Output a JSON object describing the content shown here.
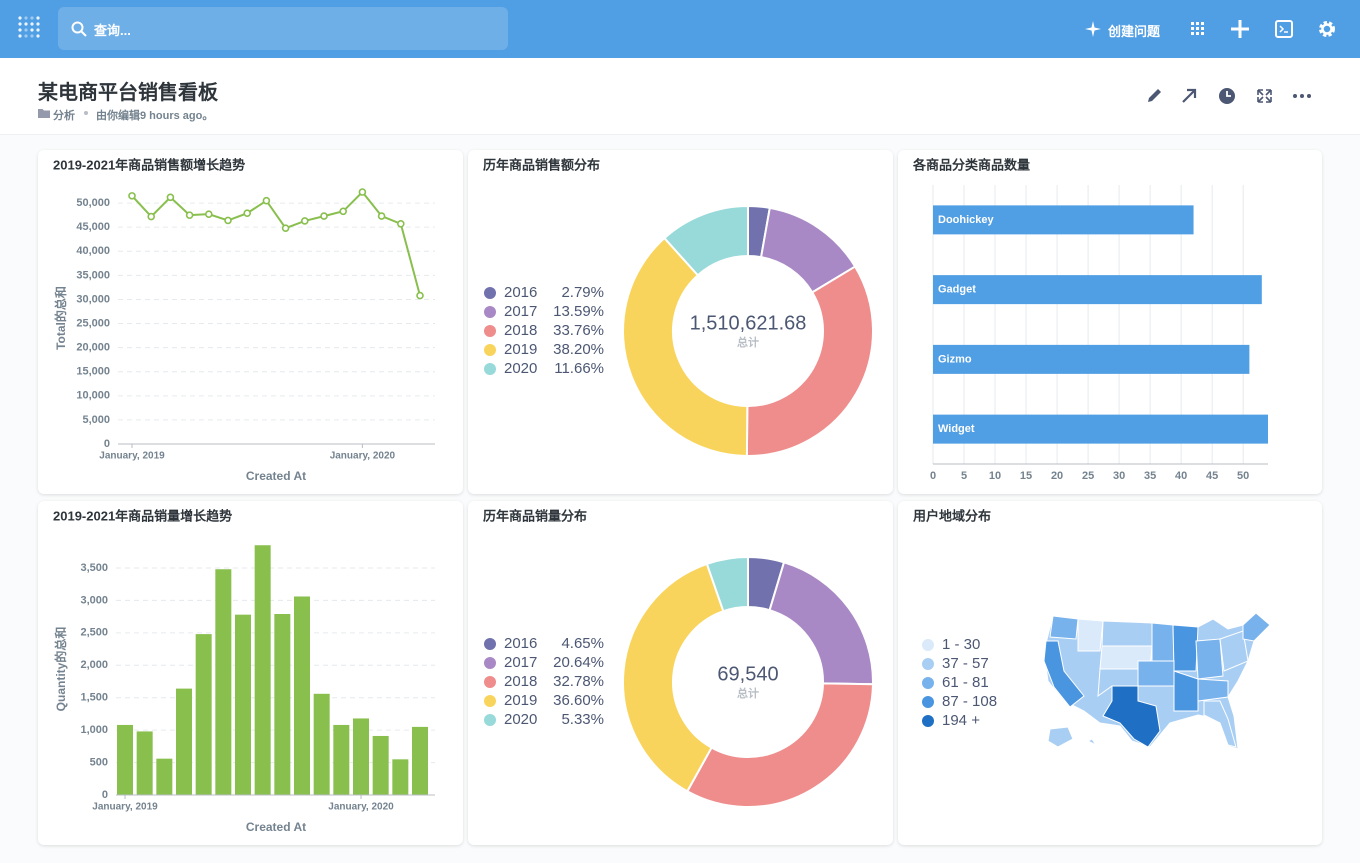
{
  "nav": {
    "search_placeholder": "查询...",
    "new_question": "创建问题"
  },
  "header": {
    "title": "某电商平台销售看板",
    "collection": "分析",
    "edited": "由你编辑9 hours ago。"
  },
  "cards": [
    {
      "type": "line",
      "title": "2019-2021年商品销售额增长趋势",
      "x_label": "Created At",
      "y_label": "Total的总和",
      "color": "#88bf4d",
      "categories": [
        "January, 2019",
        null,
        null,
        null,
        null,
        null,
        null,
        null,
        null,
        null,
        null,
        null,
        "January, 2020",
        null,
        null,
        null
      ],
      "values": [
        51500,
        47200,
        51200,
        47500,
        47700,
        46400,
        47900,
        50500,
        44800,
        46300,
        47300,
        48300,
        52300,
        47300,
        45700,
        30800
      ],
      "ylim": [
        0,
        55000
      ],
      "yticks": [
        0,
        {
          "value": 5000,
          "label": "5,000"
        },
        {
          "value": 10000,
          "label": "10,000"
        },
        {
          "value": 15000,
          "label": "15,000"
        },
        {
          "value": 20000,
          "label": "20,000"
        },
        {
          "value": 25000,
          "label": "25,000"
        },
        {
          "value": 30000,
          "label": "30,000"
        },
        {
          "value": 35000,
          "label": "35,000"
        },
        {
          "value": 40000,
          "label": "40,000"
        },
        {
          "value": 45000,
          "label": "45,000"
        },
        {
          "value": 50000,
          "label": "50,000"
        }
      ],
      "grid": true
    },
    {
      "type": "donut",
      "title": "历年商品销售额分布",
      "total": "1,510,621.68",
      "total_label": "总计",
      "categories": [
        "2016",
        "2017",
        "2018",
        "2019",
        "2020"
      ],
      "values": [
        2.79,
        13.59,
        33.76,
        38.2,
        11.66
      ],
      "value_labels": [
        "2.79%",
        "13.59%",
        "33.76%",
        "38.20%",
        "11.66%"
      ],
      "colors": [
        "#7172ad",
        "#a989c5",
        "#ef8c8c",
        "#f9d45c",
        "#98d9d9"
      ]
    },
    {
      "type": "hbar",
      "title": "各商品分类商品数量",
      "color": "#509ee3",
      "categories": [
        "Doohickey",
        "Gadget",
        "Gizmo",
        "Widget"
      ],
      "values": [
        42,
        53,
        51,
        54
      ],
      "xlim": [
        0,
        54
      ],
      "xticks": [
        0,
        5,
        10,
        15,
        20,
        25,
        30,
        35,
        40,
        45,
        50
      ],
      "grid": true
    },
    {
      "type": "bar",
      "title": "2019-2021年商品销量增长趋势",
      "x_label": "Created At",
      "y_label": "Quantity的总和",
      "color": "#88bf4d",
      "categories": [
        "January, 2019",
        null,
        null,
        null,
        null,
        null,
        null,
        null,
        null,
        null,
        null,
        null,
        "January, 2020",
        null,
        null,
        null
      ],
      "values": [
        1080,
        980,
        560,
        1640,
        2480,
        3480,
        2780,
        3850,
        2790,
        3060,
        1560,
        1080,
        1180,
        910,
        550,
        1050
      ],
      "ylim": [
        0,
        3900
      ],
      "yticks": [
        0,
        500,
        {
          "value": 1000,
          "label": "1,000"
        },
        {
          "value": 1500,
          "label": "1,500"
        },
        {
          "value": 2000,
          "label": "2,000"
        },
        {
          "value": 2500,
          "label": "2,500"
        },
        {
          "value": 3000,
          "label": "3,000"
        },
        {
          "value": 3500,
          "label": "3,500"
        }
      ],
      "grid": true
    },
    {
      "type": "donut",
      "title": "历年商品销量分布",
      "total": "69,540",
      "total_label": "总计",
      "categories": [
        "2016",
        "2017",
        "2018",
        "2019",
        "2020"
      ],
      "values": [
        4.65,
        20.64,
        32.78,
        36.6,
        5.33
      ],
      "value_labels": [
        "4.65%",
        "20.64%",
        "32.78%",
        "36.60%",
        "5.33%"
      ],
      "colors": [
        "#7172ad",
        "#a989c5",
        "#ef8c8c",
        "#f9d45c",
        "#98d9d9"
      ]
    },
    {
      "type": "map",
      "title": "用户地域分布",
      "legend": [
        {
          "label": "1 - 30",
          "color": "#dbeafa"
        },
        {
          "label": "37 - 57",
          "color": "#a9cef3"
        },
        {
          "label": "61 - 81",
          "color": "#77b2ec"
        },
        {
          "label": "87 - 108",
          "color": "#4a95e0"
        },
        {
          "label": "194 +",
          "color": "#1f6fc5"
        }
      ]
    }
  ]
}
